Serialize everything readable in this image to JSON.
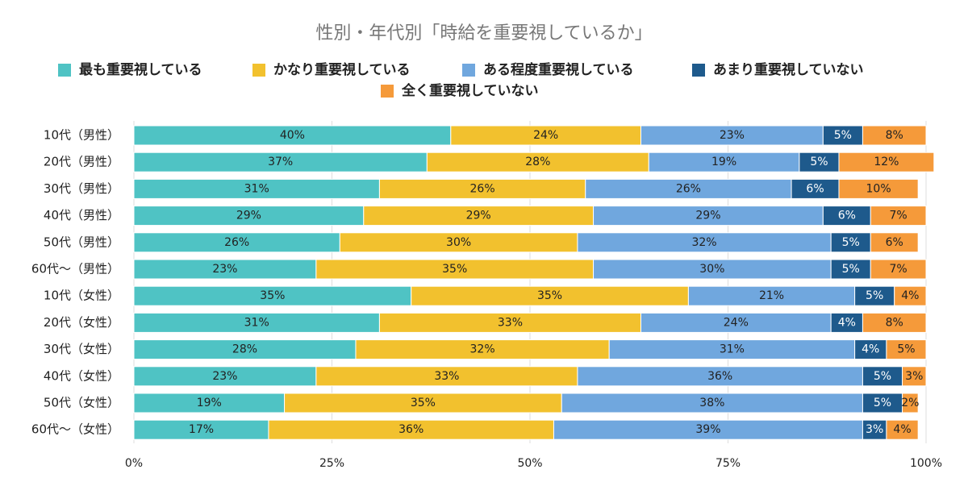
{
  "chart_data": {
    "type": "stacked-barh",
    "title": "性別・年代別「時給を重要視しているか」",
    "categories": [
      "10代（男性）",
      "20代（男性）",
      "30代（男性）",
      "40代（男性）",
      "50代（男性）",
      "60代〜（男性）",
      "10代（女性）",
      "20代（女性）",
      "30代（女性）",
      "40代（女性）",
      "50代（女性）",
      "60代〜（女性）"
    ],
    "series": [
      {
        "name": "最も重要視している",
        "color": "#4fc3c4",
        "values": [
          40,
          37,
          31,
          29,
          26,
          23,
          35,
          31,
          28,
          23,
          19,
          17
        ],
        "value_labels": [
          "40%",
          "37%",
          "31%",
          "29%",
          "26%",
          "23%",
          "35%",
          "31%",
          "28%",
          "23%",
          "19%",
          "17%"
        ]
      },
      {
        "name": "かなり重要視している",
        "color": "#f2c12e",
        "values": [
          24,
          28,
          26,
          29,
          30,
          35,
          35,
          33,
          32,
          33,
          35,
          36
        ],
        "value_labels": [
          "24%",
          "28%",
          "26%",
          "29%",
          "30%",
          "35%",
          "35%",
          "33%",
          "32%",
          "33%",
          "35%",
          "36%"
        ]
      },
      {
        "name": "ある程度重要視している",
        "color": "#70a7de",
        "values": [
          23,
          19,
          26,
          29,
          32,
          30,
          21,
          24,
          31,
          36,
          38,
          39
        ],
        "value_labels": [
          "23%",
          "19%",
          "26%",
          "29%",
          "32%",
          "30%",
          "21%",
          "24%",
          "31%",
          "36%",
          "38%",
          "39%"
        ]
      },
      {
        "name": "あまり重要視していない",
        "color": "#1e5a8c",
        "values": [
          5,
          5,
          6,
          6,
          5,
          5,
          5,
          4,
          4,
          5,
          5,
          3
        ],
        "value_labels": [
          "5%",
          "5%",
          "6%",
          "6%",
          "5%",
          "5%",
          "5%",
          "4%",
          "4%",
          "5%",
          "5%",
          "3%"
        ]
      },
      {
        "name": "全く重要視していない",
        "color": "#f59a3a",
        "values": [
          8,
          12,
          10,
          7,
          6,
          7,
          4,
          8,
          5,
          3,
          2,
          4
        ],
        "value_labels": [
          "8%",
          "12%",
          "10%",
          "7%",
          "6%",
          "7%",
          "4%",
          "8%",
          "5%",
          "3%",
          "2%",
          "4%"
        ]
      }
    ],
    "xlim": [
      0,
      100
    ],
    "xticks": [
      {
        "value": 0,
        "label": "0%"
      },
      {
        "value": 25,
        "label": "25%"
      },
      {
        "value": 50,
        "label": "50%"
      },
      {
        "value": 75,
        "label": "75%"
      },
      {
        "value": 100,
        "label": "100%"
      }
    ],
    "grid": true
  }
}
